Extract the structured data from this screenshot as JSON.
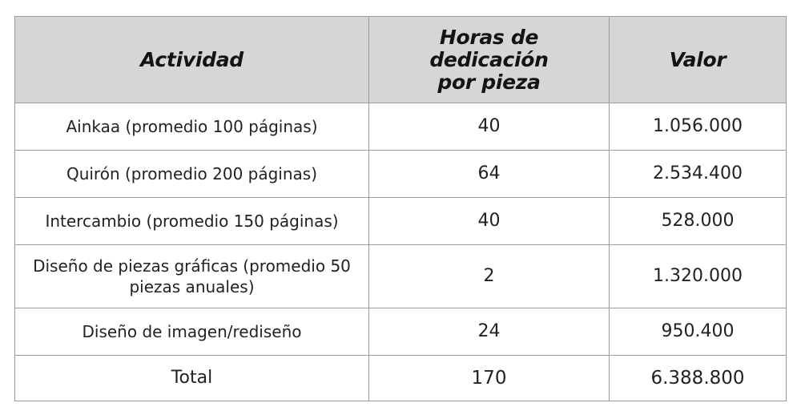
{
  "table": {
    "headers": {
      "activity": "Actividad",
      "hours_line1": "Horas de dedicación",
      "hours_line2": "por pieza",
      "value": "Valor"
    },
    "rows": [
      {
        "activity": "Ainkaa (promedio 100 páginas)",
        "hours": "40",
        "value": "1.056.000"
      },
      {
        "activity": "Quirón (promedio 200 páginas)",
        "hours": "64",
        "value": "2.534.400"
      },
      {
        "activity": "Intercambio (promedio 150 páginas)",
        "hours": "40",
        "value": "528.000"
      },
      {
        "activity_line1": "Diseño de piezas gráficas (promedio 50",
        "activity_line2": "piezas anuales)",
        "hours": "2",
        "value": "1.320.000"
      },
      {
        "activity": "Diseño de imagen/rediseño",
        "hours": "24",
        "value": "950.400"
      }
    ],
    "total": {
      "label": "Total",
      "hours": "170",
      "value": "6.388.800"
    }
  },
  "colors": {
    "header_background": "#d6d6d8",
    "border": "#9a9a9a"
  }
}
